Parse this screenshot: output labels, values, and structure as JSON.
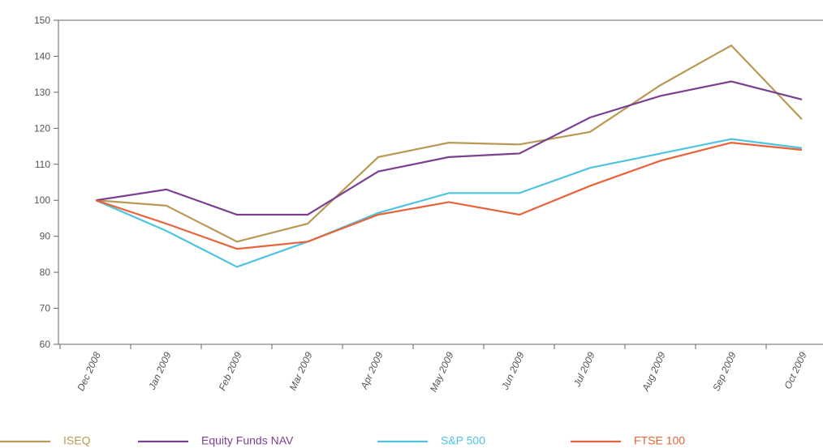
{
  "chart_data": {
    "type": "line",
    "categories": [
      "Dec 2008",
      "Jan 2009",
      "Feb 2009",
      "Mar 2009",
      "Apr 2009",
      "May 2009",
      "Jun 2009",
      "Jul 2009",
      "Aug 2009",
      "Sep 2009",
      "Oct 2009"
    ],
    "series": [
      {
        "name": "ISEQ",
        "color": "#b89a55",
        "values": [
          100,
          98.5,
          88.5,
          93.5,
          112,
          116,
          115.5,
          119,
          132,
          143,
          122.5
        ]
      },
      {
        "name": "Equity Funds NAV",
        "color": "#7b3f8f",
        "values": [
          100,
          103,
          96,
          96,
          108,
          112,
          113,
          123,
          129,
          133,
          128
        ]
      },
      {
        "name": "S&P 500",
        "color": "#4fc3e0",
        "values": [
          100,
          91.5,
          81.5,
          88.5,
          96.5,
          102,
          102,
          109,
          113,
          117,
          114.5
        ]
      },
      {
        "name": "FTSE 100",
        "color": "#e8623a",
        "values": [
          100,
          93.5,
          86.5,
          88.5,
          96,
          99.5,
          96,
          104,
          111,
          116,
          114
        ]
      }
    ],
    "ylim": [
      60,
      150
    ],
    "yticks": [
      60,
      70,
      80,
      90,
      100,
      110,
      120,
      130,
      140,
      150
    ],
    "legend": "bottom"
  }
}
